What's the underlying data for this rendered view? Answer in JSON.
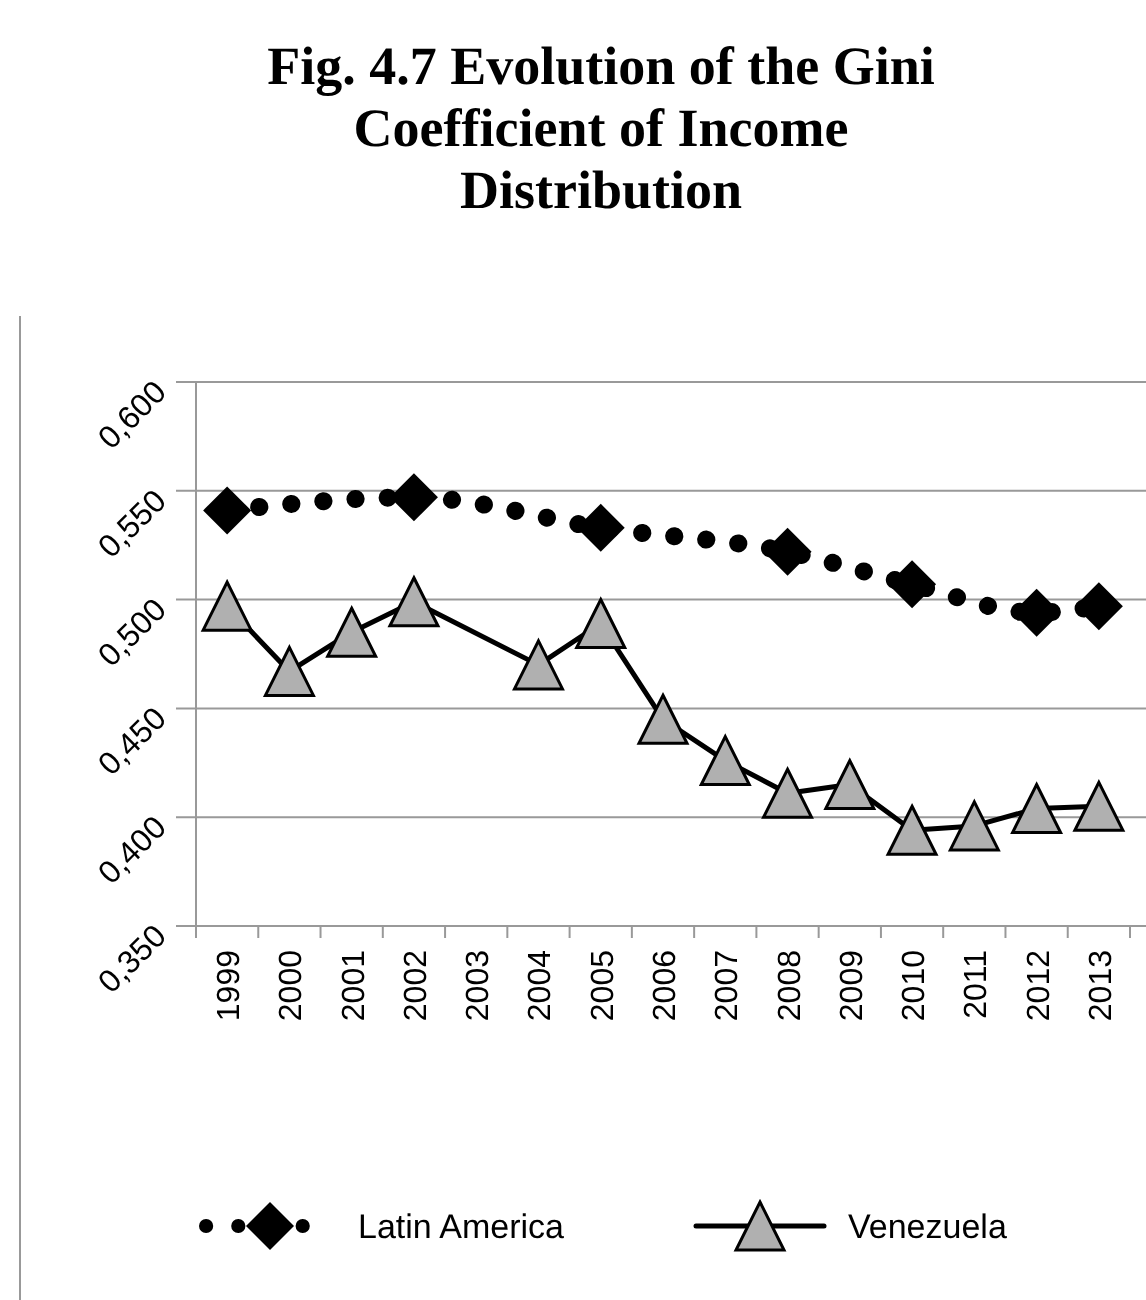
{
  "chart_data": {
    "type": "line",
    "title": "Fig. 4.7 Evolution of the Gini Coefficient of Income Distribution",
    "categories": [
      "1999",
      "2000",
      "2001",
      "2002",
      "2003",
      "2004",
      "2005",
      "2006",
      "2007",
      "2008",
      "2009",
      "2010",
      "2011",
      "2012",
      "2013"
    ],
    "series": [
      {
        "name": "Latin America",
        "color": "#000000",
        "marker": "diamond",
        "line_style": "dotted",
        "values": [
          0.541,
          null,
          null,
          0.547,
          null,
          null,
          0.533,
          null,
          null,
          0.522,
          null,
          0.507,
          null,
          0.494,
          0.497
        ]
      },
      {
        "name": "Venezuela",
        "color": "#000000",
        "marker": "triangle",
        "line_style": "solid",
        "values": [
          0.497,
          0.467,
          0.485,
          0.499,
          null,
          0.47,
          0.489,
          0.445,
          0.426,
          0.411,
          0.415,
          0.394,
          0.396,
          0.404,
          0.405
        ]
      }
    ],
    "ylim": [
      0.35,
      0.6
    ],
    "yticks": [
      {
        "value": 0.35,
        "label": "0,350"
      },
      {
        "value": 0.4,
        "label": "0,400"
      },
      {
        "value": 0.45,
        "label": "0,450"
      },
      {
        "value": 0.5,
        "label": "0,500"
      },
      {
        "value": 0.55,
        "label": "0,550"
      },
      {
        "value": 0.6,
        "label": "0,600"
      }
    ],
    "grid": "y",
    "legend": "bottom"
  }
}
